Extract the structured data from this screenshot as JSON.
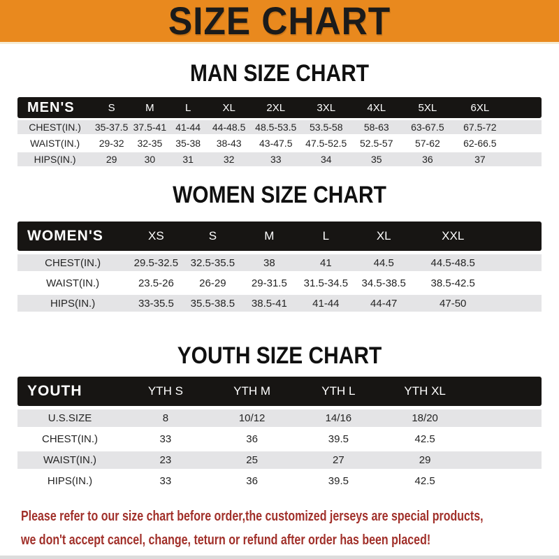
{
  "banner": {
    "title": "SIZE CHART"
  },
  "colors": {
    "banner_orange": "#E9891E",
    "bar_black": "#171513",
    "row_gray": "#E4E4E6",
    "footer_red": "#A1302A"
  },
  "man": {
    "heading": "MAN SIZE CHART",
    "table": {
      "label": "MEN'S",
      "columns": [
        "S",
        "M",
        "L",
        "XL",
        "2XL",
        "3XL",
        "4XL",
        "5XL",
        "6XL"
      ],
      "rows": [
        {
          "label": "CHEST(IN.)",
          "values": [
            "35-37.5",
            "37.5-41",
            "41-44",
            "44-48.5",
            "48.5-53.5",
            "53.5-58",
            "58-63",
            "63-67.5",
            "67.5-72"
          ]
        },
        {
          "label": "WAIST(IN.)",
          "values": [
            "29-32",
            "32-35",
            "35-38",
            "38-43",
            "43-47.5",
            "47.5-52.5",
            "52.5-57",
            "57-62",
            "62-66.5"
          ]
        },
        {
          "label": "HIPS(IN.)",
          "values": [
            "29",
            "30",
            "31",
            "32",
            "33",
            "34",
            "35",
            "36",
            "37"
          ]
        }
      ]
    }
  },
  "women": {
    "heading": "WOMEN SIZE CHART",
    "table": {
      "label": "WOMEN'S",
      "columns": [
        "XS",
        "S",
        "M",
        "L",
        "XL",
        "XXL"
      ],
      "rows": [
        {
          "label": "CHEST(IN.)",
          "values": [
            "29.5-32.5",
            "32.5-35.5",
            "38",
            "41",
            "44.5",
            "44.5-48.5"
          ]
        },
        {
          "label": "WAIST(IN.)",
          "values": [
            "23.5-26",
            "26-29",
            "29-31.5",
            "31.5-34.5",
            "34.5-38.5",
            "38.5-42.5"
          ]
        },
        {
          "label": "HIPS(IN.)",
          "values": [
            "33-35.5",
            "35.5-38.5",
            "38.5-41",
            "41-44",
            "44-47",
            "47-50"
          ]
        }
      ]
    }
  },
  "youth": {
    "heading": "YOUTH SIZE CHART",
    "table": {
      "label": "YOUTH",
      "columns": [
        "YTH S",
        "YTH M",
        "YTH L",
        "YTH XL"
      ],
      "rows": [
        {
          "label": "U.S.SIZE",
          "values": [
            "8",
            "10/12",
            "14/16",
            "18/20"
          ]
        },
        {
          "label": "CHEST(IN.)",
          "values": [
            "33",
            "36",
            "39.5",
            "42.5"
          ]
        },
        {
          "label": "WAIST(IN.)",
          "values": [
            "23",
            "25",
            "27",
            "29"
          ]
        },
        {
          "label": "HIPS(IN.)",
          "values": [
            "33",
            "36",
            "39.5",
            "42.5"
          ]
        }
      ]
    }
  },
  "footer": {
    "line1": "Please refer to our size chart before order,the customized jerseys are special products,",
    "line2": "we don't accept cancel, change, teturn or refund after order has been placed!"
  }
}
